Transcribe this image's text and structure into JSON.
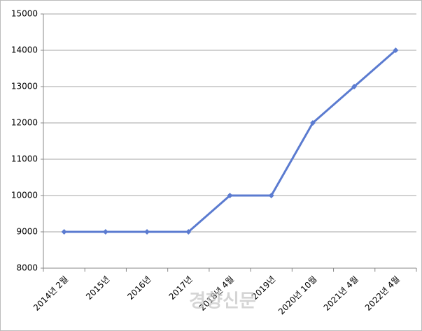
{
  "chart_data": {
    "type": "line",
    "categories": [
      "2014년 2월",
      "2015년",
      "2016년",
      "2017년",
      "2018년 4월",
      "2019년",
      "2020년 10월",
      "2021년 4월",
      "2022년 4월"
    ],
    "series": [
      {
        "color": "#5b7bd0",
        "values": [
          9000,
          9000,
          9000,
          9000,
          10000,
          10000,
          12000,
          13000,
          14000
        ]
      }
    ],
    "ylim": [
      8000,
      15000
    ],
    "yticks": [
      8000,
      9000,
      10000,
      11000,
      12000,
      13000,
      14000,
      15000
    ],
    "grid": true,
    "watermark": "경향신문"
  }
}
